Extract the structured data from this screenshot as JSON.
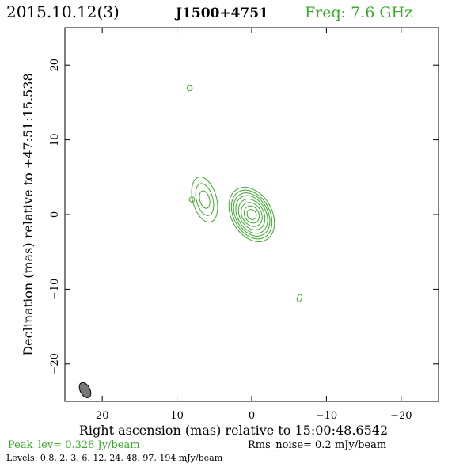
{
  "header": {
    "date": "2015.10.12(3)",
    "source": "J1500+4751",
    "freq": "Freq: 7.6 GHz"
  },
  "colors": {
    "contour": "#3aaa2a",
    "text": "#000000",
    "beam": "#777777"
  },
  "footer": {
    "peak": "Peak_lev=  0.328 Jy/beam",
    "rms": "Rms_noise=  0.2 mJy/beam",
    "levels": "Levels: 0.8,   2,   3,   6,  12,  24,  48,  97, 194 mJy/beam"
  },
  "chart_data": {
    "type": "contour",
    "xlabel": "Right ascension (mas) relative to 15:00:48.6542",
    "ylabel": "Declination (mas) relative to +47:51:15.538",
    "xlim": [
      25,
      -25
    ],
    "ylim": [
      -25,
      25
    ],
    "xticks": [
      20,
      10,
      0,
      -10,
      -20
    ],
    "xtick_labels": [
      "20",
      "10",
      "0",
      "−10",
      "−20"
    ],
    "yticks": [
      20,
      10,
      0,
      -10,
      -20
    ],
    "ytick_labels": [
      "20",
      "10",
      "0",
      "−10",
      "−20"
    ],
    "levels_mJy": [
      0.8,
      2,
      3,
      6,
      12,
      24,
      48,
      97,
      194
    ],
    "components": [
      {
        "x": 0.0,
        "y": 0.0,
        "angle": -30,
        "rings": [
          [
            3.9,
            2.7
          ],
          [
            3.5,
            2.4
          ],
          [
            3.1,
            2.15
          ],
          [
            2.7,
            1.9
          ],
          [
            2.2,
            1.6
          ],
          [
            1.7,
            1.3
          ],
          [
            1.2,
            0.95
          ],
          [
            0.7,
            0.6
          ]
        ]
      },
      {
        "x": 6.3,
        "y": 2.0,
        "angle": -15,
        "rings": [
          [
            3.1,
            1.6
          ],
          [
            2.2,
            1.1
          ],
          [
            1.2,
            0.65
          ]
        ]
      },
      {
        "x": 8.3,
        "y": 16.9,
        "angle": 0,
        "rings": [
          [
            0.35,
            0.35
          ]
        ]
      },
      {
        "x": 8.0,
        "y": 2.0,
        "angle": 0,
        "rings": [
          [
            0.35,
            0.35
          ]
        ]
      },
      {
        "x": -6.4,
        "y": -11.2,
        "angle": 20,
        "rings": [
          [
            0.5,
            0.3
          ]
        ]
      }
    ],
    "beam": {
      "x": 22.3,
      "y": -23.5,
      "major": 1.1,
      "minor": 0.65,
      "angle": -28
    }
  }
}
